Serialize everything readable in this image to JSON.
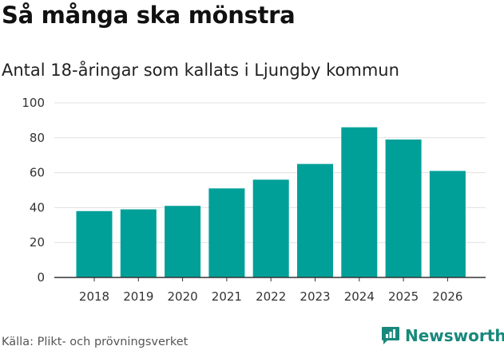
{
  "title": "Så många ska mönstra",
  "subtitle": "Antal 18-åringar som kallats i Ljungby kommun",
  "source": "Källa: Plikt- och prövningsverket",
  "brand": {
    "name": "Newsworthy",
    "icon": "newsworthy-logo-icon",
    "color": "#18887c"
  },
  "colors": {
    "bar": "#00a098",
    "grid": "#e0e0e0",
    "axis": "#333333"
  },
  "chart_data": {
    "type": "bar",
    "title": "Så många ska mönstra",
    "subtitle": "Antal 18-åringar som kallats i Ljungby kommun",
    "xlabel": "",
    "ylabel": "",
    "categories": [
      "2018",
      "2019",
      "2020",
      "2021",
      "2022",
      "2023",
      "2024",
      "2025",
      "2026"
    ],
    "values": [
      38,
      39,
      41,
      51,
      56,
      65,
      86,
      79,
      61
    ],
    "ylim": [
      0,
      100
    ],
    "yticks": [
      0,
      20,
      40,
      60,
      80,
      100
    ],
    "grid": true,
    "legend": "none"
  }
}
